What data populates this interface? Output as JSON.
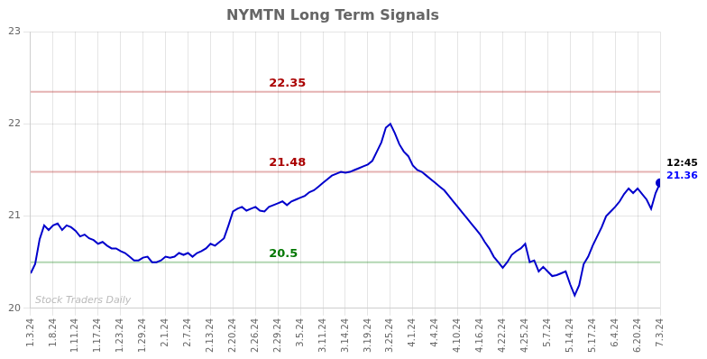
{
  "chart_data": {
    "type": "line",
    "title": "NYMTN Long Term Signals",
    "categories": [
      "1.3.24",
      null,
      null,
      null,
      null,
      "1.8.24",
      null,
      null,
      null,
      null,
      "1.11.24",
      null,
      null,
      null,
      null,
      "1.17.24",
      null,
      null,
      null,
      null,
      "1.23.24",
      null,
      null,
      null,
      null,
      "1.29.24",
      null,
      null,
      null,
      null,
      "2.1.24",
      null,
      null,
      null,
      null,
      "2.7.24",
      null,
      null,
      null,
      null,
      "2.13.24",
      null,
      null,
      null,
      null,
      "2.20.24",
      null,
      null,
      null,
      null,
      "2.26.24",
      null,
      null,
      null,
      null,
      "2.29.24",
      null,
      null,
      null,
      null,
      "3.5.24",
      null,
      null,
      null,
      null,
      "3.11.24",
      null,
      null,
      null,
      null,
      "3.14.24",
      null,
      null,
      null,
      null,
      "3.19.24",
      null,
      null,
      null,
      null,
      "3.25.24",
      null,
      null,
      null,
      null,
      "4.1.24",
      null,
      null,
      null,
      null,
      "4.4.24",
      null,
      null,
      null,
      null,
      "4.10.24",
      null,
      null,
      null,
      null,
      "4.16.24",
      null,
      null,
      null,
      null,
      "4.22.24",
      null,
      null,
      null,
      null,
      "4.25.24",
      null,
      null,
      null,
      null,
      "5.7.24",
      null,
      null,
      null,
      null,
      "5.14.24",
      null,
      null,
      null,
      null,
      "5.17.24",
      null,
      null,
      null,
      null,
      "6.4.24",
      null,
      null,
      null,
      null,
      "6.20.24",
      null,
      null,
      null,
      null,
      "7.3.24"
    ],
    "series": [
      {
        "color": "#0000cc",
        "values": [
          20.38,
          20.48,
          20.75,
          20.9,
          20.85,
          20.9,
          20.92,
          20.85,
          20.9,
          20.88,
          20.84,
          20.78,
          20.8,
          20.76,
          20.74,
          20.7,
          20.72,
          20.68,
          20.65,
          20.65,
          20.62,
          20.6,
          20.56,
          20.52,
          20.52,
          20.55,
          20.56,
          20.5,
          20.5,
          20.52,
          20.56,
          20.55,
          20.56,
          20.6,
          20.58,
          20.6,
          20.56,
          20.6,
          20.62,
          20.65,
          20.7,
          20.68,
          20.72,
          20.76,
          20.9,
          21.05,
          21.08,
          21.1,
          21.06,
          21.08,
          21.1,
          21.06,
          21.05,
          21.1,
          21.12,
          21.14,
          21.16,
          21.12,
          21.16,
          21.18,
          21.2,
          21.22,
          21.26,
          21.28,
          21.32,
          21.36,
          21.4,
          21.44,
          21.46,
          21.48,
          21.47,
          21.48,
          21.5,
          21.52,
          21.54,
          21.56,
          21.6,
          21.7,
          21.8,
          21.96,
          22.0,
          21.9,
          21.78,
          21.7,
          21.65,
          21.55,
          21.5,
          21.48,
          21.44,
          21.4,
          21.36,
          21.32,
          21.28,
          21.22,
          21.16,
          21.1,
          21.04,
          20.98,
          20.92,
          20.86,
          20.8,
          20.72,
          20.65,
          20.56,
          20.5,
          20.44,
          20.5,
          20.58,
          20.62,
          20.65,
          20.7,
          20.5,
          20.52,
          20.4,
          20.45,
          20.4,
          20.35,
          20.36,
          20.38,
          20.4,
          20.26,
          20.14,
          20.25,
          20.48,
          20.56,
          20.68,
          20.78,
          20.88,
          21.0,
          21.05,
          21.1,
          21.16,
          21.24,
          21.3,
          21.25,
          21.3,
          21.24,
          21.18,
          21.08,
          21.25,
          21.36
        ]
      }
    ],
    "hlines": [
      {
        "value": 22.35,
        "label": "22.35",
        "color": "#aa0000"
      },
      {
        "value": 21.48,
        "label": "21.48",
        "color": "#aa0000"
      },
      {
        "value": 20.5,
        "label": "20.5",
        "color": "#007700"
      }
    ],
    "annotations": [
      {
        "text": "12:45",
        "color": "#000000"
      },
      {
        "text": "21.36",
        "color": "#0000ff"
      }
    ],
    "watermark": "Stock Traders Daily",
    "ylim": [
      20.0,
      23.0
    ],
    "yticks": [
      20,
      21,
      22,
      23
    ],
    "grid": true
  }
}
